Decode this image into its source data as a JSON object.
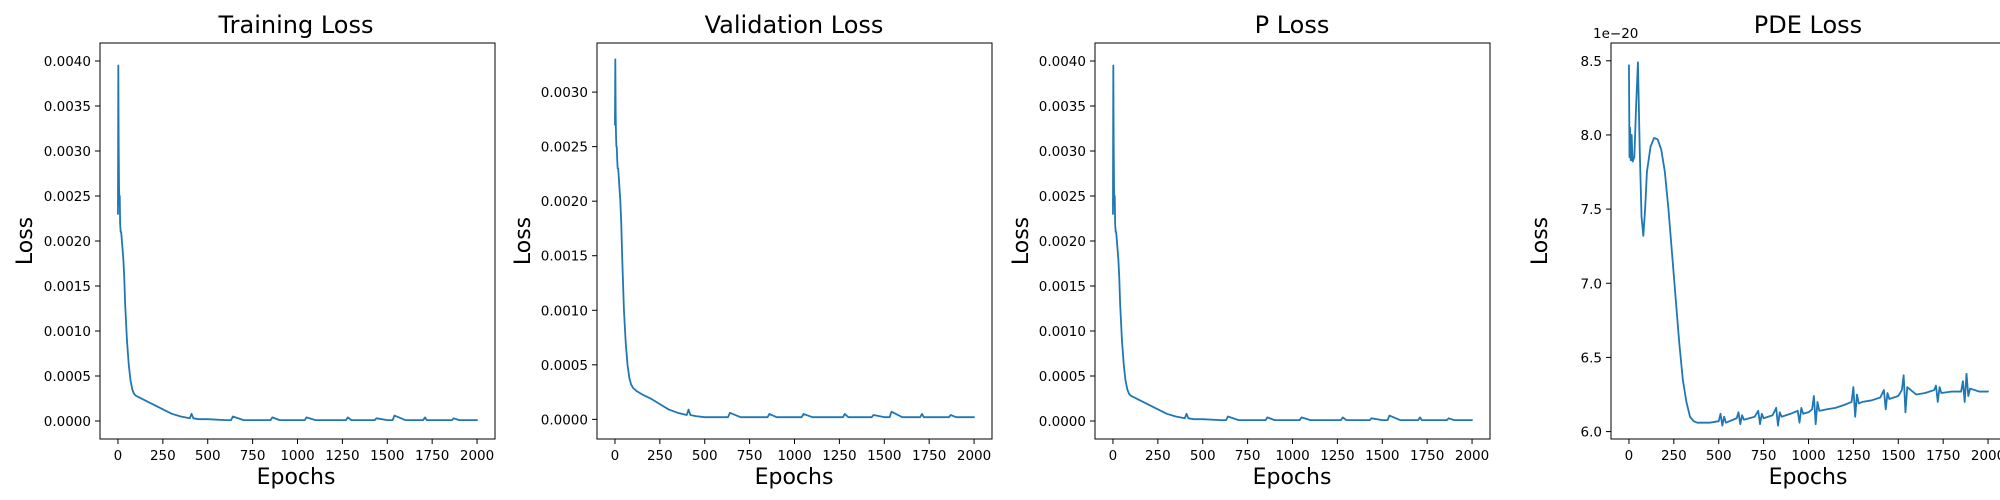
{
  "chart_data": [
    {
      "type": "line",
      "title": "Training Loss",
      "xlabel": "Epochs",
      "ylabel": "Loss",
      "xlim": [
        -100,
        2100
      ],
      "ylim": [
        -0.0002,
        0.0042
      ],
      "xticks": [
        0,
        250,
        500,
        750,
        1000,
        1250,
        1500,
        1750,
        2000
      ],
      "xtick_labels": [
        "0",
        "250",
        "500",
        "750",
        "1000",
        "1250",
        "1500",
        "1750",
        "2000"
      ],
      "yticks": [
        0,
        0.0005,
        0.001,
        0.0015,
        0.002,
        0.0025,
        0.003,
        0.0035,
        0.004
      ],
      "ytick_labels": [
        "0.0000",
        "0.0005",
        "0.0010",
        "0.0015",
        "0.0020",
        "0.0025",
        "0.0030",
        "0.0035",
        "0.0040"
      ],
      "offset_text": "",
      "color": "#1f77b4",
      "grid": false,
      "series": [
        {
          "x": [
            0,
            2,
            4,
            6,
            8,
            10,
            12,
            15,
            18,
            22,
            26,
            30,
            35,
            40,
            50,
            60,
            70,
            80,
            90,
            100,
            120,
            150,
            200,
            250,
            300,
            350,
            400,
            410,
            420,
            450,
            500,
            600,
            630,
            640,
            700,
            800,
            850,
            860,
            900,
            1000,
            1040,
            1050,
            1100,
            1200,
            1270,
            1280,
            1300,
            1400,
            1430,
            1440,
            1500,
            1530,
            1540,
            1600,
            1700,
            1710,
            1720,
            1800,
            1860,
            1870,
            1900,
            2000
          ],
          "y": [
            0.0023,
            0.00395,
            0.0031,
            0.0026,
            0.0024,
            0.0025,
            0.0022,
            0.0021,
            0.0021,
            0.002,
            0.0019,
            0.0018,
            0.0016,
            0.0013,
            0.0009,
            0.00063,
            0.00045,
            0.00035,
            0.0003,
            0.00028,
            0.00026,
            0.00023,
            0.00018,
            0.00013,
            8e-05,
            5e-05,
            3e-05,
            8e-05,
            3e-05,
            2e-05,
            2e-05,
            1e-05,
            1e-05,
            5e-05,
            1e-05,
            1e-05,
            1e-05,
            4e-05,
            1e-05,
            1e-05,
            1e-05,
            4e-05,
            1e-05,
            1e-05,
            1e-05,
            4e-05,
            1e-05,
            1e-05,
            1e-05,
            3e-05,
            1e-05,
            1e-05,
            6e-05,
            1e-05,
            1e-05,
            4e-05,
            1e-05,
            1e-05,
            1e-05,
            3e-05,
            1e-05,
            1e-05
          ]
        }
      ]
    },
    {
      "type": "line",
      "title": "Validation Loss",
      "xlabel": "Epochs",
      "ylabel": "Loss",
      "xlim": [
        -100,
        2100
      ],
      "ylim": [
        -0.00018,
        0.00345
      ],
      "xticks": [
        0,
        250,
        500,
        750,
        1000,
        1250,
        1500,
        1750,
        2000
      ],
      "xtick_labels": [
        "0",
        "250",
        "500",
        "750",
        "1000",
        "1250",
        "1500",
        "1750",
        "2000"
      ],
      "yticks": [
        0,
        0.0005,
        0.001,
        0.0015,
        0.002,
        0.0025,
        0.003
      ],
      "ytick_labels": [
        "0.0000",
        "0.0005",
        "0.0010",
        "0.0015",
        "0.0020",
        "0.0025",
        "0.0030"
      ],
      "offset_text": "",
      "color": "#1f77b4",
      "grid": false,
      "series": [
        {
          "x": [
            0,
            2,
            4,
            6,
            8,
            10,
            12,
            15,
            18,
            22,
            26,
            30,
            35,
            40,
            50,
            60,
            70,
            80,
            90,
            100,
            120,
            150,
            200,
            250,
            300,
            350,
            400,
            410,
            420,
            450,
            500,
            600,
            630,
            640,
            700,
            800,
            850,
            860,
            900,
            1000,
            1040,
            1050,
            1100,
            1200,
            1270,
            1280,
            1300,
            1400,
            1430,
            1440,
            1500,
            1530,
            1540,
            1600,
            1700,
            1710,
            1720,
            1800,
            1860,
            1870,
            1900,
            2000
          ],
          "y": [
            0.0027,
            0.0033,
            0.0028,
            0.0026,
            0.0025,
            0.0025,
            0.0024,
            0.0023,
            0.0023,
            0.0022,
            0.0021,
            0.002,
            0.0018,
            0.0015,
            0.001,
            0.0007,
            0.0005,
            0.00038,
            0.00032,
            0.00029,
            0.00026,
            0.00023,
            0.00019,
            0.00014,
            9e-05,
            6e-05,
            4e-05,
            9e-05,
            4e-05,
            3e-05,
            2e-05,
            2e-05,
            2e-05,
            6e-05,
            2e-05,
            2e-05,
            2e-05,
            5e-05,
            2e-05,
            2e-05,
            2e-05,
            5e-05,
            2e-05,
            2e-05,
            2e-05,
            5e-05,
            2e-05,
            2e-05,
            2e-05,
            4e-05,
            2e-05,
            2e-05,
            7e-05,
            2e-05,
            2e-05,
            5e-05,
            2e-05,
            2e-05,
            2e-05,
            4e-05,
            2e-05,
            2e-05
          ]
        }
      ]
    },
    {
      "type": "line",
      "title": "P Loss",
      "xlabel": "Epochs",
      "ylabel": "Loss",
      "xlim": [
        -100,
        2100
      ],
      "ylim": [
        -0.0002,
        0.0042
      ],
      "xticks": [
        0,
        250,
        500,
        750,
        1000,
        1250,
        1500,
        1750,
        2000
      ],
      "xtick_labels": [
        "0",
        "250",
        "500",
        "750",
        "1000",
        "1250",
        "1500",
        "1750",
        "2000"
      ],
      "yticks": [
        0,
        0.0005,
        0.001,
        0.0015,
        0.002,
        0.0025,
        0.003,
        0.0035,
        0.004
      ],
      "ytick_labels": [
        "0.0000",
        "0.0005",
        "0.0010",
        "0.0015",
        "0.0020",
        "0.0025",
        "0.0030",
        "0.0035",
        "0.0040"
      ],
      "offset_text": "",
      "color": "#1f77b4",
      "grid": false,
      "series": [
        {
          "x": [
            0,
            2,
            4,
            6,
            8,
            10,
            12,
            15,
            18,
            22,
            26,
            30,
            35,
            40,
            50,
            60,
            70,
            80,
            90,
            100,
            120,
            150,
            200,
            250,
            300,
            350,
            400,
            410,
            420,
            450,
            500,
            600,
            630,
            640,
            700,
            800,
            850,
            860,
            900,
            1000,
            1040,
            1050,
            1100,
            1200,
            1270,
            1280,
            1300,
            1400,
            1430,
            1440,
            1500,
            1530,
            1540,
            1600,
            1700,
            1710,
            1720,
            1800,
            1860,
            1870,
            1900,
            2000
          ],
          "y": [
            0.0023,
            0.00395,
            0.0031,
            0.0026,
            0.0024,
            0.0025,
            0.0022,
            0.0021,
            0.0021,
            0.002,
            0.0019,
            0.0018,
            0.0016,
            0.0013,
            0.0009,
            0.00063,
            0.00045,
            0.00035,
            0.0003,
            0.00028,
            0.00026,
            0.00023,
            0.00018,
            0.00013,
            8e-05,
            5e-05,
            3e-05,
            8e-05,
            3e-05,
            2e-05,
            2e-05,
            1e-05,
            1e-05,
            5e-05,
            1e-05,
            1e-05,
            1e-05,
            4e-05,
            1e-05,
            1e-05,
            1e-05,
            4e-05,
            1e-05,
            1e-05,
            1e-05,
            4e-05,
            1e-05,
            1e-05,
            1e-05,
            3e-05,
            1e-05,
            1e-05,
            6e-05,
            1e-05,
            1e-05,
            4e-05,
            1e-05,
            1e-05,
            1e-05,
            3e-05,
            1e-05,
            1e-05
          ]
        }
      ]
    },
    {
      "type": "line",
      "title": "PDE Loss",
      "xlabel": "Epochs",
      "ylabel": "Loss",
      "xlim": [
        -100,
        2100
      ],
      "ylim": [
        5.95,
        8.62
      ],
      "xticks": [
        0,
        250,
        500,
        750,
        1000,
        1250,
        1500,
        1750,
        2000
      ],
      "xtick_labels": [
        "0",
        "250",
        "500",
        "750",
        "1000",
        "1250",
        "1500",
        "1750",
        "2000"
      ],
      "yticks": [
        6.0,
        6.5,
        7.0,
        7.5,
        8.0,
        8.5
      ],
      "ytick_labels": [
        "6.0",
        "6.5",
        "7.0",
        "7.5",
        "8.0",
        "8.5"
      ],
      "offset_text": "1e−20",
      "color": "#1f77b4",
      "grid": false,
      "series": [
        {
          "x": [
            0,
            3,
            6,
            10,
            15,
            20,
            30,
            40,
            50,
            55,
            60,
            70,
            80,
            90,
            100,
            120,
            140,
            160,
            180,
            200,
            220,
            240,
            260,
            280,
            300,
            320,
            340,
            360,
            380,
            400,
            450,
            500,
            510,
            520,
            530,
            540,
            600,
            610,
            620,
            630,
            640,
            700,
            720,
            730,
            740,
            750,
            800,
            820,
            830,
            840,
            850,
            900,
            940,
            950,
            960,
            970,
            1000,
            1020,
            1030,
            1040,
            1050,
            1060,
            1100,
            1150,
            1200,
            1240,
            1250,
            1260,
            1270,
            1280,
            1300,
            1350,
            1400,
            1420,
            1430,
            1440,
            1450,
            1500,
            1520,
            1530,
            1540,
            1550,
            1600,
            1650,
            1700,
            1710,
            1720,
            1730,
            1740,
            1800,
            1850,
            1860,
            1870,
            1880,
            1890,
            1900,
            1950,
            2000
          ],
          "y": [
            8.47,
            7.85,
            8.05,
            7.83,
            8.0,
            7.82,
            7.85,
            8.2,
            8.49,
            8.2,
            7.9,
            7.45,
            7.32,
            7.5,
            7.75,
            7.92,
            7.98,
            7.97,
            7.9,
            7.75,
            7.5,
            7.2,
            6.9,
            6.6,
            6.35,
            6.2,
            6.1,
            6.07,
            6.06,
            6.06,
            6.06,
            6.07,
            6.12,
            6.04,
            6.1,
            6.06,
            6.09,
            6.13,
            6.05,
            6.11,
            6.08,
            6.1,
            6.14,
            6.05,
            6.12,
            6.09,
            6.11,
            6.16,
            6.04,
            6.13,
            6.1,
            6.12,
            6.14,
            6.06,
            6.16,
            6.12,
            6.13,
            6.15,
            6.24,
            6.05,
            6.2,
            6.14,
            6.15,
            6.16,
            6.18,
            6.2,
            6.3,
            6.1,
            6.25,
            6.19,
            6.2,
            6.21,
            6.23,
            6.28,
            6.15,
            6.26,
            6.22,
            6.24,
            6.28,
            6.38,
            6.13,
            6.3,
            6.25,
            6.26,
            6.28,
            6.31,
            6.2,
            6.3,
            6.26,
            6.27,
            6.27,
            6.34,
            6.2,
            6.39,
            6.24,
            6.29,
            6.27,
            6.27
          ]
        }
      ]
    }
  ]
}
